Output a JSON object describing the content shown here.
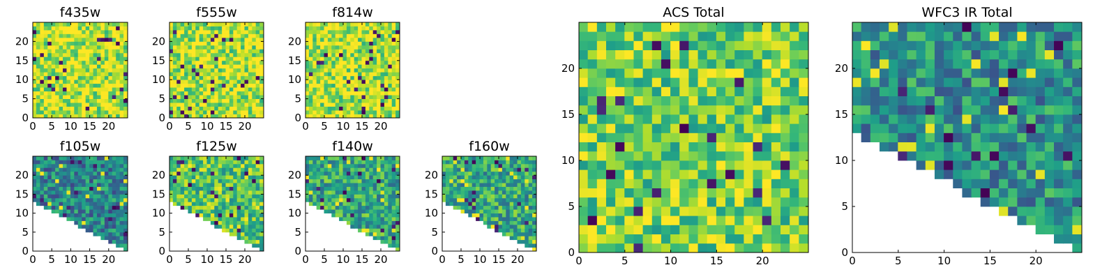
{
  "colors": {
    "colormap": "viridis",
    "axes_edge": "#000000",
    "background": "#ffffff"
  },
  "chart_data": [
    {
      "type": "heatmap",
      "title": "f435w",
      "xlim": [
        0,
        25
      ],
      "ylim": [
        0,
        25
      ],
      "xticks": [
        0,
        5,
        10,
        15,
        20
      ],
      "yticks": [
        0,
        5,
        10,
        15,
        20
      ],
      "mask": "none",
      "value_range": [
        0.78,
        1.0
      ],
      "approx_mean": 0.9,
      "seed": 11
    },
    {
      "type": "heatmap",
      "title": "f555w",
      "xlim": [
        0,
        25
      ],
      "ylim": [
        0,
        25
      ],
      "xticks": [
        0,
        5,
        10,
        15,
        20
      ],
      "yticks": [
        0,
        5,
        10,
        15,
        20
      ],
      "mask": "none",
      "value_range": [
        0.75,
        1.0
      ],
      "approx_mean": 0.88,
      "seed": 23
    },
    {
      "type": "heatmap",
      "title": "f814w",
      "xlim": [
        0,
        25
      ],
      "ylim": [
        0,
        25
      ],
      "xticks": [
        0,
        5,
        10,
        15,
        20
      ],
      "yticks": [
        0,
        5,
        10,
        15,
        20
      ],
      "mask": "none",
      "value_range": [
        0.75,
        1.0
      ],
      "approx_mean": 0.88,
      "seed": 37
    },
    {
      "type": "heatmap",
      "title": "f105w",
      "xlim": [
        0,
        25
      ],
      "ylim": [
        0,
        25
      ],
      "xticks": [
        0,
        5,
        10,
        15,
        20
      ],
      "yticks": [
        0,
        5,
        10,
        15,
        20
      ],
      "mask": "lower-right triangle (no data below line from (0,13) to (24,0))",
      "value_range": [
        0.0,
        1.0
      ],
      "approx_mean": 0.45,
      "seed": 41
    },
    {
      "type": "heatmap",
      "title": "f125w",
      "xlim": [
        0,
        25
      ],
      "ylim": [
        0,
        25
      ],
      "xticks": [
        0,
        5,
        10,
        15,
        20
      ],
      "yticks": [
        0,
        5,
        10,
        15,
        20
      ],
      "mask": "lower-right triangle (no data below line from (0,13) to (24,0))",
      "value_range": [
        0.0,
        1.0
      ],
      "approx_mean": 0.72,
      "seed": 53
    },
    {
      "type": "heatmap",
      "title": "f140w",
      "xlim": [
        0,
        25
      ],
      "ylim": [
        0,
        25
      ],
      "xticks": [
        0,
        5,
        10,
        15,
        20
      ],
      "yticks": [
        0,
        5,
        10,
        15,
        20
      ],
      "mask": "lower-right triangle (no data below line from (0,13) to (24,0))",
      "value_range": [
        0.0,
        1.0
      ],
      "approx_mean": 0.6,
      "seed": 67
    },
    {
      "type": "heatmap",
      "title": "f160w",
      "xlim": [
        0,
        25
      ],
      "ylim": [
        0,
        25
      ],
      "xticks": [
        0,
        5,
        10,
        15,
        20
      ],
      "yticks": [
        0,
        5,
        10,
        15,
        20
      ],
      "mask": "lower-right triangle (no data below line from (0,13) to (24,0))",
      "value_range": [
        0.0,
        1.0
      ],
      "approx_mean": 0.6,
      "seed": 79
    },
    {
      "type": "heatmap",
      "title": "ACS Total",
      "xlim": [
        0,
        25
      ],
      "ylim": [
        0,
        25
      ],
      "xticks": [
        0,
        5,
        10,
        15,
        20
      ],
      "yticks": [
        0,
        5,
        10,
        15,
        20
      ],
      "mask": "none",
      "value_range": [
        0.0,
        1.0
      ],
      "approx_mean": 0.78,
      "seed": 97
    },
    {
      "type": "heatmap",
      "title": "WFC3 IR Total",
      "xlim": [
        0,
        25
      ],
      "ylim": [
        0,
        25
      ],
      "xticks": [
        0,
        5,
        10,
        15,
        20
      ],
      "yticks": [
        0,
        5,
        10,
        15,
        20
      ],
      "mask": "lower-right triangle (no data below line from (0,13) to (24,0))",
      "value_range": [
        0.0,
        1.0
      ],
      "approx_mean": 0.5,
      "seed": 113
    }
  ]
}
